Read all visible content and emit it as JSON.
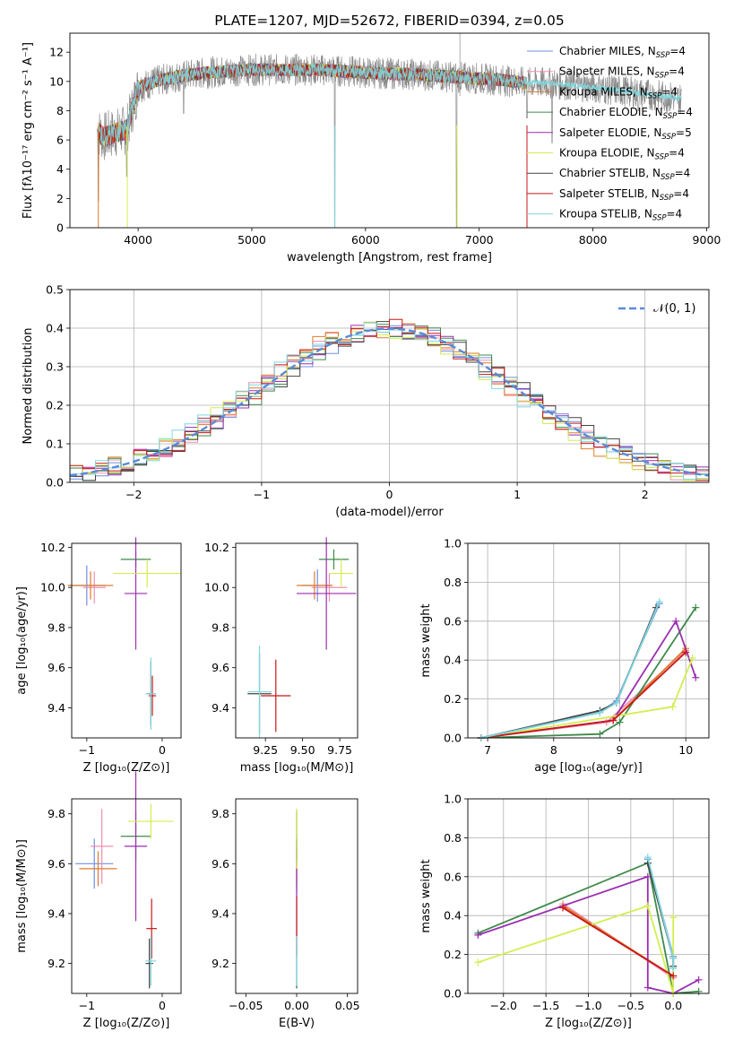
{
  "colors": {
    "chabrier_miles": "#6f8fe0",
    "salpeter_miles": "#f08fb0",
    "kroupa_miles": "#e07a2a",
    "chabrier_elodie": "#3f8a4a",
    "salpeter_elodie": "#9a2fb0",
    "kroupa_elodie": "#d2ee50",
    "chabrier_stelib": "#444444",
    "salpeter_stelib": "#c81818",
    "kroupa_stelib": "#7fd8de",
    "data": "#8a8a8a",
    "normal": "#5a8ad8"
  },
  "chart_data": [
    {
      "id": "spectrum",
      "type": "line",
      "title": "PLATE=1207, MJD=52672, FIBERID=0394, z=0.05",
      "xlabel": "wavelength [Angstrom, rest frame]",
      "ylabel": "Flux [fλ10⁻¹⁷ erg cm⁻² s⁻¹ A⁻¹]",
      "xlim": [
        3400,
        9020
      ],
      "ylim": [
        0,
        13.3
      ],
      "xticks": [
        "4000",
        "5000",
        "6000",
        "7000",
        "8000",
        "9000"
      ],
      "yticks": [
        "0",
        "2",
        "4",
        "6",
        "8",
        "10",
        "12"
      ],
      "legend_position": "top-right",
      "grid": false,
      "series": [
        {
          "name": "Chabrier MILES, N",
          "sub": "SSP",
          "suffix": "=4"
        },
        {
          "name": "Salpeter MILES, N",
          "sub": "SSP",
          "suffix": "=4"
        },
        {
          "name": "Kroupa MILES, N",
          "sub": "SSP",
          "suffix": "=4"
        },
        {
          "name": "Chabrier ELODIE, N",
          "sub": "SSP",
          "suffix": "=4"
        },
        {
          "name": "Salpeter ELODIE, N",
          "sub": "SSP",
          "suffix": "=5"
        },
        {
          "name": "Kroupa ELODIE, N",
          "sub": "SSP",
          "suffix": "=4"
        },
        {
          "name": "Chabrier STELIB, N",
          "sub": "SSP",
          "suffix": "=4"
        },
        {
          "name": "Salpeter STELIB, N",
          "sub": "SSP",
          "suffix": "=4"
        },
        {
          "name": "Kroupa STELIB, N",
          "sub": "SSP",
          "suffix": "=4"
        }
      ],
      "continuum": {
        "x": [
          3640,
          3700,
          3800,
          3900,
          4000,
          4200,
          4400,
          4600,
          4800,
          5000,
          5300,
          5600,
          6000,
          6400,
          6800,
          7200,
          7400,
          7600,
          8000,
          8400,
          8800
        ],
        "y": [
          6.6,
          6.2,
          6.5,
          6.7,
          9.6,
          10.1,
          10.4,
          10.6,
          10.7,
          10.8,
          10.8,
          10.8,
          10.6,
          10.5,
          10.3,
          10.1,
          9.9,
          9.9,
          9.6,
          9.2,
          8.8
        ]
      }
    },
    {
      "id": "residuals",
      "type": "bar",
      "xlabel": "(data-model)/error",
      "ylabel": "Normed distribution",
      "xlim": [
        -2.5,
        2.5
      ],
      "ylim": [
        0,
        0.5
      ],
      "xticks": [
        "−2",
        "−1",
        "0",
        "1",
        "2"
      ],
      "yticks": [
        "0.0",
        "0.1",
        "0.2",
        "0.3",
        "0.4",
        "0.5"
      ],
      "legend": "𝒩(0, 1)",
      "grid": true,
      "bin_width": 0.1
    },
    {
      "id": "age_vs_Z",
      "type": "scatter",
      "xlabel": "Z [log₁₀(Z/Z⊙)]",
      "ylabel": "age  [log₁₀(age/yr)]",
      "xlim": [
        -1.2,
        0.25
      ],
      "ylim": [
        9.25,
        10.22
      ],
      "xticks": [
        "−1",
        "0"
      ],
      "yticks": [
        "9.4",
        "9.6",
        "9.8",
        "10.0",
        "10.2"
      ],
      "points": [
        {
          "x": -1.0,
          "y": 10.01,
          "xerr": 0.25,
          "yerr": 0.1,
          "c": "chabrier_miles"
        },
        {
          "x": -0.9,
          "y": 10.0,
          "xerr": 0.15,
          "yerr": 0.08,
          "c": "salpeter_miles"
        },
        {
          "x": -0.95,
          "y": 10.01,
          "xerr": 0.3,
          "yerr": 0.07,
          "c": "kroupa_miles"
        },
        {
          "x": -0.35,
          "y": 10.14,
          "xerr": 0.2,
          "yerr": 0.04,
          "c": "chabrier_elodie"
        },
        {
          "x": -0.35,
          "y": 9.97,
          "xerr": 0.15,
          "yerr": 0.28,
          "c": "salpeter_elodie"
        },
        {
          "x": -0.2,
          "y": 10.07,
          "xerr": 0.45,
          "yerr": 0.07,
          "c": "kroupa_elodie"
        },
        {
          "x": -0.15,
          "y": 9.47,
          "xerr": 0.05,
          "yerr": 0.16,
          "c": "chabrier_stelib"
        },
        {
          "x": -0.13,
          "y": 9.46,
          "xerr": 0.05,
          "yerr": 0.1,
          "c": "salpeter_stelib"
        },
        {
          "x": -0.15,
          "y": 9.47,
          "xerr": 0.07,
          "yerr": 0.18,
          "c": "kroupa_stelib"
        }
      ]
    },
    {
      "id": "age_vs_mass",
      "type": "scatter",
      "xlabel": "mass [log₁₀(M/M⊙)]",
      "ylabel": "",
      "xlim": [
        9.05,
        9.87
      ],
      "ylim": [
        9.25,
        10.22
      ],
      "xticks": [
        "9.25",
        "9.50",
        "9.75"
      ],
      "yticks": [
        "9.4",
        "9.6",
        "9.8",
        "10.0",
        "10.2"
      ],
      "points": [
        {
          "x": 9.6,
          "y": 10.01,
          "xerr": 0.1,
          "yerr": 0.08,
          "c": "chabrier_miles"
        },
        {
          "x": 9.68,
          "y": 10.0,
          "xerr": 0.12,
          "yerr": 0.07,
          "c": "salpeter_miles"
        },
        {
          "x": 9.58,
          "y": 10.01,
          "xerr": 0.12,
          "yerr": 0.07,
          "c": "kroupa_miles"
        },
        {
          "x": 9.71,
          "y": 10.14,
          "xerr": 0.1,
          "yerr": 0.05,
          "c": "chabrier_elodie"
        },
        {
          "x": 9.66,
          "y": 9.97,
          "xerr": 0.2,
          "yerr": 0.28,
          "c": "salpeter_elodie"
        },
        {
          "x": 9.76,
          "y": 10.07,
          "xerr": 0.08,
          "yerr": 0.07,
          "c": "kroupa_elodie"
        },
        {
          "x": 9.21,
          "y": 9.47,
          "xerr": 0.08,
          "yerr": 0.2,
          "c": "chabrier_stelib"
        },
        {
          "x": 9.32,
          "y": 9.46,
          "xerr": 0.1,
          "yerr": 0.18,
          "c": "salpeter_stelib"
        },
        {
          "x": 9.21,
          "y": 9.48,
          "xerr": 0.08,
          "yerr": 0.23,
          "c": "kroupa_stelib"
        }
      ]
    },
    {
      "id": "mw_vs_age",
      "type": "line",
      "xlabel": "age  [log₁₀(age/yr)]",
      "ylabel": "mass weight",
      "xlim": [
        6.7,
        10.35
      ],
      "ylim": [
        0,
        1.0
      ],
      "xticks": [
        "7",
        "8",
        "9",
        "10"
      ],
      "yticks": [
        "0.0",
        "0.2",
        "0.4",
        "0.6",
        "0.8",
        "1.0"
      ],
      "grid": true,
      "series": [
        {
          "c": "chabrier_miles",
          "x": [
            6.9,
            8.7,
            8.95,
            9.6
          ],
          "y": [
            0.0,
            0.13,
            0.19,
            0.69
          ]
        },
        {
          "c": "salpeter_miles",
          "x": [
            6.9,
            8.8,
            10.0
          ],
          "y": [
            0.0,
            0.08,
            0.45
          ]
        },
        {
          "c": "kroupa_miles",
          "x": [
            6.9,
            8.9,
            10.0
          ],
          "y": [
            0.0,
            0.09,
            0.46
          ]
        },
        {
          "c": "chabrier_elodie",
          "x": [
            6.9,
            8.7,
            9.0,
            10.15
          ],
          "y": [
            0.0,
            0.02,
            0.08,
            0.67
          ]
        },
        {
          "c": "salpeter_elodie",
          "x": [
            6.9,
            8.9,
            9.85,
            10.15
          ],
          "y": [
            0.0,
            0.09,
            0.6,
            0.31
          ]
        },
        {
          "c": "kroupa_elodie",
          "x": [
            6.9,
            9.8,
            10.1
          ],
          "y": [
            0.0,
            0.16,
            0.41
          ]
        },
        {
          "c": "chabrier_stelib",
          "x": [
            6.9,
            8.7,
            8.95,
            9.55
          ],
          "y": [
            0.0,
            0.14,
            0.18,
            0.67
          ]
        },
        {
          "c": "salpeter_stelib",
          "x": [
            6.9,
            8.9,
            10.0
          ],
          "y": [
            0.0,
            0.09,
            0.44
          ]
        },
        {
          "c": "kroupa_stelib",
          "x": [
            6.9,
            8.7,
            8.95,
            9.6
          ],
          "y": [
            0.0,
            0.13,
            0.18,
            0.7
          ]
        }
      ]
    },
    {
      "id": "mass_vs_Z",
      "type": "scatter",
      "xlabel": "Z [log₁₀(Z/Z⊙)]",
      "ylabel": "mass [log₁₀(M/M⊙)]",
      "xlim": [
        -1.2,
        0.25
      ],
      "ylim": [
        9.08,
        9.86
      ],
      "xticks": [
        "−1",
        "0"
      ],
      "yticks": [
        "9.2",
        "9.4",
        "9.6",
        "9.8"
      ],
      "points": [
        {
          "x": -0.9,
          "y": 9.6,
          "xerr": 0.25,
          "yerr": 0.1,
          "c": "chabrier_miles"
        },
        {
          "x": -0.8,
          "y": 9.67,
          "xerr": 0.15,
          "yerr": 0.15,
          "c": "salpeter_miles"
        },
        {
          "x": -0.85,
          "y": 9.58,
          "xerr": 0.25,
          "yerr": 0.07,
          "c": "kroupa_miles"
        },
        {
          "x": -0.35,
          "y": 9.71,
          "xerr": 0.2,
          "yerr": 0.1,
          "c": "chabrier_elodie"
        },
        {
          "x": -0.35,
          "y": 9.67,
          "xerr": 0.15,
          "yerr": 0.3,
          "c": "salpeter_elodie"
        },
        {
          "x": -0.15,
          "y": 9.77,
          "xerr": 0.3,
          "yerr": 0.07,
          "c": "kroupa_elodie"
        },
        {
          "x": -0.17,
          "y": 9.2,
          "xerr": 0.05,
          "yerr": 0.1,
          "c": "chabrier_stelib"
        },
        {
          "x": -0.14,
          "y": 9.34,
          "xerr": 0.07,
          "yerr": 0.12,
          "c": "salpeter_stelib"
        },
        {
          "x": -0.15,
          "y": 9.21,
          "xerr": 0.07,
          "yerr": 0.1,
          "c": "kroupa_stelib"
        }
      ]
    },
    {
      "id": "mass_vs_ebv",
      "type": "scatter",
      "xlabel": "E(B-V)",
      "ylabel": "",
      "xlim": [
        -0.06,
        0.06
      ],
      "ylim": [
        9.08,
        9.86
      ],
      "xticks": [
        "−0.05",
        "0.00",
        "0.05"
      ],
      "yticks": [
        "9.2",
        "9.4",
        "9.6",
        "9.8"
      ],
      "points": [
        {
          "x": 0,
          "y": 9.6,
          "xerr": 0,
          "yerr": 0.12,
          "c": "chabrier_miles"
        },
        {
          "x": 0,
          "y": 9.67,
          "xerr": 0,
          "yerr": 0.15,
          "c": "salpeter_miles"
        },
        {
          "x": 0,
          "y": 9.58,
          "xerr": 0,
          "yerr": 0.08,
          "c": "kroupa_miles"
        },
        {
          "x": 0,
          "y": 9.71,
          "xerr": 0,
          "yerr": 0.1,
          "c": "chabrier_elodie"
        },
        {
          "x": 0,
          "y": 9.5,
          "xerr": 0,
          "yerr": 0.2,
          "c": "salpeter_elodie"
        },
        {
          "x": 0,
          "y": 9.7,
          "xerr": 0,
          "yerr": 0.12,
          "c": "kroupa_elodie"
        },
        {
          "x": 0,
          "y": 9.2,
          "xerr": 0,
          "yerr": 0.1,
          "c": "chabrier_stelib"
        },
        {
          "x": 0,
          "y": 9.35,
          "xerr": 0,
          "yerr": 0.12,
          "c": "salpeter_stelib"
        },
        {
          "x": 0,
          "y": 9.21,
          "xerr": 0,
          "yerr": 0.1,
          "c": "kroupa_stelib"
        }
      ]
    },
    {
      "id": "mw_vs_Z",
      "type": "line",
      "xlabel": "Z [log₁₀(Z/Z⊙)]",
      "ylabel": "mass weight",
      "xlim": [
        -2.42,
        0.42
      ],
      "ylim": [
        0,
        1.0
      ],
      "xticks": [
        "−2.0",
        "−1.5",
        "−1.0",
        "−0.5",
        "0.0"
      ],
      "yticks": [
        "0.0",
        "0.2",
        "0.4",
        "0.6",
        "0.8",
        "1.0"
      ],
      "grid": true,
      "series": [
        {
          "c": "chabrier_miles",
          "x": [
            -0.3,
            0.0,
            0.0
          ],
          "y": [
            0.69,
            0.19,
            0.13
          ]
        },
        {
          "c": "salpeter_miles",
          "x": [
            -1.3,
            0.0
          ],
          "y": [
            0.46,
            0.08
          ]
        },
        {
          "c": "kroupa_miles",
          "x": [
            -1.3,
            0.0
          ],
          "y": [
            0.45,
            0.09
          ]
        },
        {
          "c": "chabrier_elodie",
          "x": [
            -2.3,
            -0.3,
            0.0,
            0.3
          ],
          "y": [
            0.31,
            0.67,
            0.0,
            0.01
          ]
        },
        {
          "c": "salpeter_elodie",
          "x": [
            -2.3,
            -0.3,
            -0.3,
            0.0,
            0.3
          ],
          "y": [
            0.3,
            0.6,
            0.03,
            0.0,
            0.07
          ]
        },
        {
          "c": "kroupa_elodie",
          "x": [
            -2.3,
            -0.3,
            0.0,
            0.0
          ],
          "y": [
            0.16,
            0.45,
            0.0,
            0.39
          ]
        },
        {
          "c": "chabrier_stelib",
          "x": [
            -0.3,
            0.0,
            0.0
          ],
          "y": [
            0.67,
            0.18,
            0.14
          ]
        },
        {
          "c": "salpeter_stelib",
          "x": [
            -1.3,
            0.0
          ],
          "y": [
            0.44,
            0.09
          ]
        },
        {
          "c": "kroupa_stelib",
          "x": [
            -0.3,
            0.0,
            0.0
          ],
          "y": [
            0.7,
            0.18,
            0.13
          ]
        }
      ]
    }
  ]
}
